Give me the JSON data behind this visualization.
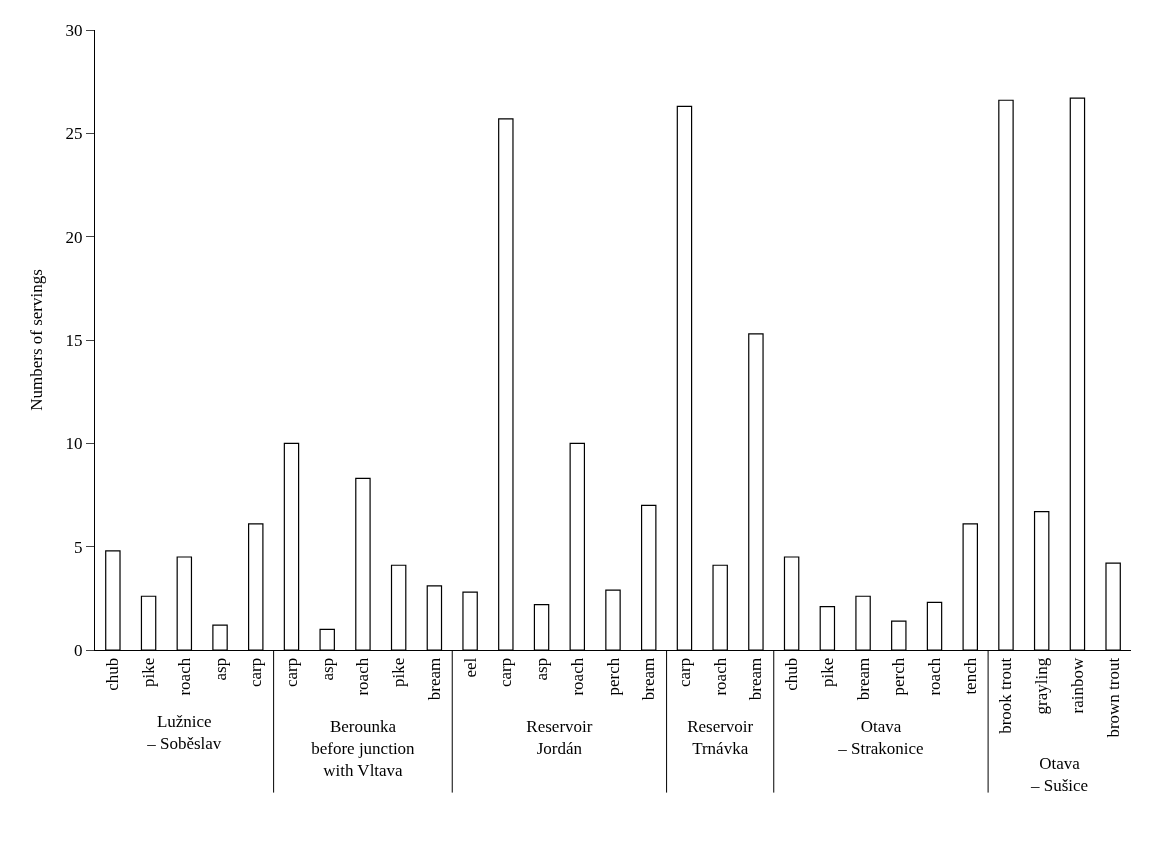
{
  "chart_data": [
    {
      "type": "bar",
      "xlabel": "Lužnice\n– Soběslav",
      "ylabel": "Numbers of servings",
      "categories": [
        "chub",
        "pike",
        "roach",
        "asp",
        "carp"
      ],
      "values": [
        4.8,
        2.6,
        4.5,
        1.2,
        6.1
      ],
      "color": "#ffffff",
      "ylim": [
        0,
        30
      ],
      "yticks": [
        0,
        5,
        10,
        15,
        20,
        25,
        30
      ]
    },
    {
      "type": "bar",
      "xlabel": "Berounka\nbefore junction\nwith Vltava",
      "categories": [
        "carp",
        "asp",
        "roach",
        "pike",
        "bream"
      ],
      "values": [
        10.0,
        1.0,
        8.3,
        4.1,
        3.1
      ],
      "color": "#ffffff",
      "ylim": [
        0,
        30
      ],
      "yticks": [
        0,
        5,
        10,
        15,
        20,
        25,
        30
      ],
      "tick_labels": "x"
    },
    {
      "type": "bar",
      "xlabel": "Reservoir\nJordán",
      "categories": [
        "eel",
        "carp",
        "asp",
        "roach",
        "perch",
        "bream"
      ],
      "values": [
        2.8,
        25.7,
        2.2,
        10.0,
        2.9,
        7.0
      ],
      "color": "#ffffff",
      "ylim": [
        0,
        30
      ],
      "yticks": [
        0,
        5,
        10,
        15,
        20,
        25,
        30
      ],
      "tick_labels": "x"
    },
    {
      "type": "bar",
      "xlabel": "Reservoir\nTrnávka",
      "categories": [
        "carp",
        "roach",
        "bream"
      ],
      "values": [
        26.3,
        4.1,
        15.3
      ],
      "color": "#ffffff",
      "ylim": [
        0,
        30
      ],
      "yticks": [
        0,
        5,
        10,
        15,
        20,
        25,
        30
      ],
      "tick_labels": "x"
    },
    {
      "type": "bar",
      "xlabel": "Otava\n– Strakonice",
      "categories": [
        "chub",
        "pike",
        "bream",
        "perch",
        "roach",
        "tench"
      ],
      "values": [
        4.5,
        2.1,
        2.6,
        1.4,
        2.3,
        6.1
      ],
      "color": "#ffffff",
      "ylim": [
        0,
        30
      ],
      "yticks": [
        0,
        5,
        10,
        15,
        20,
        25,
        30
      ],
      "tick_labels": "x"
    },
    {
      "type": "bar",
      "xlabel": "Otava\n– Sušice",
      "categories": [
        "brook trout",
        "grayling",
        "rainbow",
        "brown trout"
      ],
      "values": [
        26.6,
        6.7,
        26.7,
        4.2
      ],
      "color": "#ffffff",
      "ylim": [
        0,
        30
      ],
      "yticks": [
        0,
        5,
        10,
        15,
        20,
        25,
        30
      ],
      "tick_labels": "x"
    }
  ]
}
